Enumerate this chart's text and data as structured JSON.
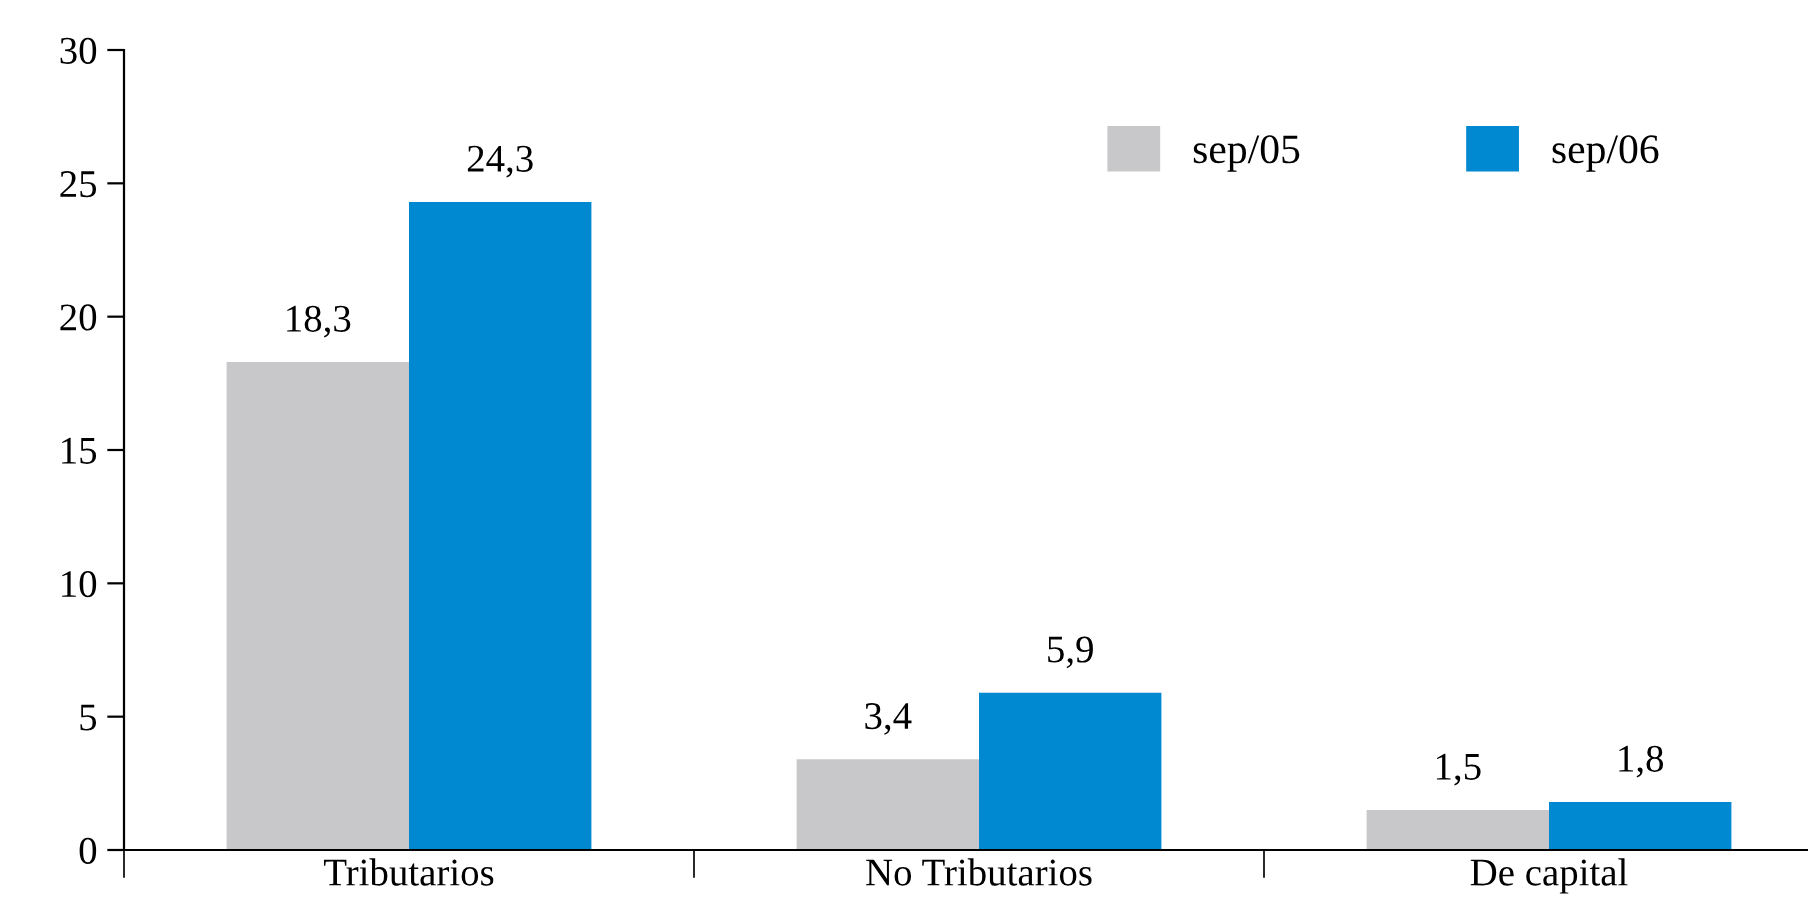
{
  "chart_data": {
    "type": "bar",
    "categories": [
      "Tributarios",
      "No Tributarios",
      "De capital"
    ],
    "series": [
      {
        "name": "sep/05",
        "color": "#c8c8ca",
        "values": [
          18.3,
          3.4,
          1.5
        ],
        "value_labels": [
          "18,3",
          "3,4",
          "1,5"
        ]
      },
      {
        "name": "sep/06",
        "color": "#0088d1",
        "values": [
          24.3,
          5.9,
          1.8
        ],
        "value_labels": [
          "24,3",
          "5,9",
          "1,8"
        ]
      }
    ],
    "ylim": [
      0,
      30
    ],
    "yticks": [
      0,
      5,
      10,
      15,
      20,
      25,
      30
    ],
    "grid": false,
    "legend": "top right"
  }
}
